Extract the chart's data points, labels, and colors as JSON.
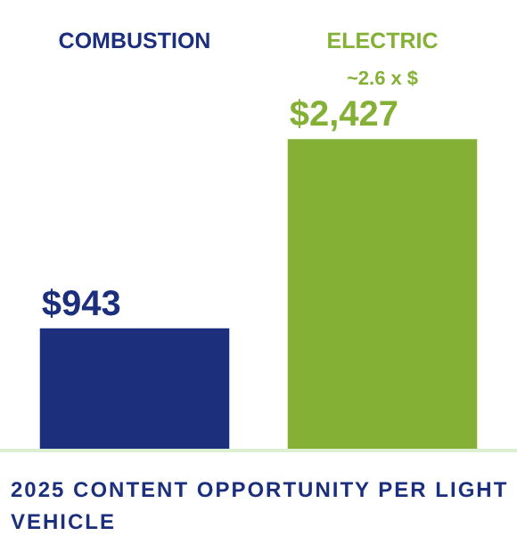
{
  "chart_data": {
    "type": "bar",
    "title": "2025 CONTENT OPPORTUNITY PER LIGHT VEHICLE",
    "categories": [
      "COMBUSTION",
      "ELECTRIC"
    ],
    "values": [
      943,
      2427
    ],
    "colors": [
      "#1b2f7d",
      "#84b135"
    ],
    "value_labels": [
      "$943",
      "$2,427"
    ],
    "annotations": [
      "~2.6 x $"
    ],
    "tick_labels": "x",
    "grid": false,
    "legend": false
  }
}
